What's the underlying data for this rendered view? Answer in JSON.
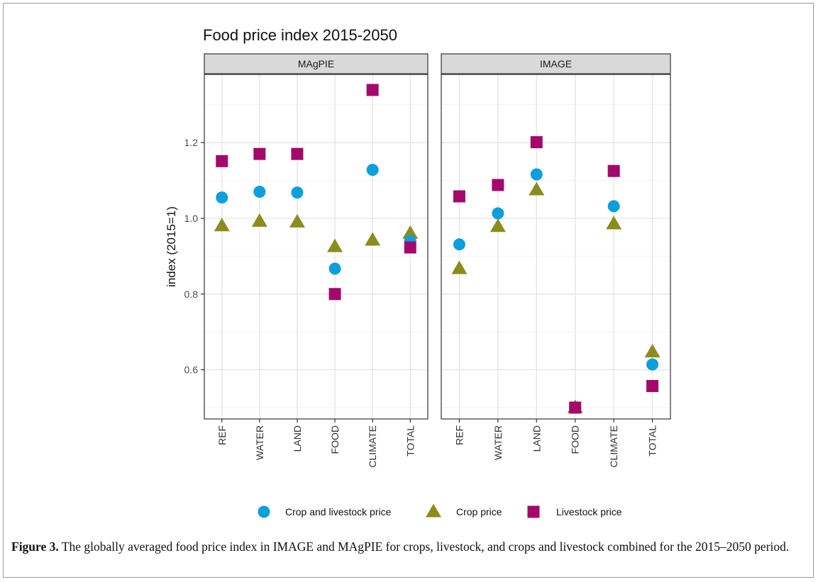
{
  "caption": {
    "label": "Figure 3.",
    "text": "The globally averaged food price index in IMAGE and MAgPIE for crops, livestock, and crops and livestock combined for the 2015–2050 period."
  },
  "colors": {
    "crop_and_livestock": "#0b9fdb",
    "crop": "#8b8c1c",
    "livestock": "#a3086b",
    "strip_bg": "#d9d9d9",
    "grid_major": "#e6e6e6",
    "grid_minor": "#f2f2f2",
    "panel_border": "#333333"
  },
  "chart_data": {
    "type": "scatter",
    "title": "Food price index 2015-2050",
    "ylabel": "index (2015=1)",
    "xlabel": "",
    "ylim": [
      0.47,
      1.38
    ],
    "yticks": [
      0.6,
      0.8,
      1.0,
      1.2
    ],
    "ytick_labels": [
      "0.6",
      "0.8",
      "1.0",
      "1.2"
    ],
    "grid": true,
    "legend_position": "bottom",
    "categories": [
      "REF",
      "WATER",
      "LAND",
      "FOOD",
      "CLIMATE",
      "TOTAL"
    ],
    "legend": [
      {
        "name": "Crop and livestock price",
        "shape": "circle"
      },
      {
        "name": "Crop price",
        "shape": "triangle"
      },
      {
        "name": "Livestock price",
        "shape": "square"
      }
    ],
    "panels": [
      {
        "name": "MAgPIE",
        "series": [
          {
            "name": "Crop and livestock price",
            "values": [
              1.055,
              1.07,
              1.068,
              0.867,
              1.128,
              0.94
            ]
          },
          {
            "name": "Crop price",
            "values": [
              0.98,
              0.992,
              0.99,
              0.925,
              0.942,
              0.96
            ]
          },
          {
            "name": "Livestock price",
            "values": [
              1.151,
              1.17,
              1.17,
              0.8,
              1.339,
              0.923
            ]
          }
        ]
      },
      {
        "name": "IMAGE",
        "series": [
          {
            "name": "Crop and livestock price",
            "values": [
              0.931,
              1.013,
              1.116,
              0.5,
              1.032,
              0.614
            ]
          },
          {
            "name": "Crop price",
            "values": [
              0.867,
              0.978,
              1.075,
              0.5,
              0.985,
              0.647
            ]
          },
          {
            "name": "Livestock price",
            "values": [
              1.058,
              1.088,
              1.201,
              0.5,
              1.125,
              0.557
            ]
          }
        ]
      }
    ]
  }
}
